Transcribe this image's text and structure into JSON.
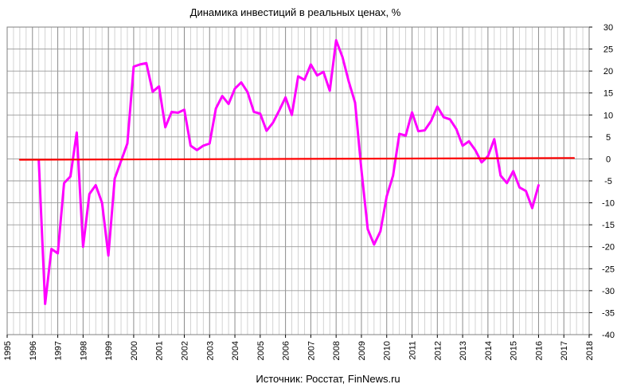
{
  "chart_data": {
    "type": "line",
    "title": "Динамика инвестиций в реальных ценах, %",
    "source": "Источник: Росстат, FinNews.ru",
    "xlabel": "",
    "ylabel": "",
    "xlim": [
      1995,
      2018
    ],
    "ylim": [
      -40,
      30
    ],
    "x_ticks": [
      "1995",
      "1996",
      "1997",
      "1998",
      "1999",
      "2000",
      "2001",
      "2002",
      "2003",
      "2004",
      "2005",
      "2006",
      "2007",
      "2008",
      "2009",
      "2010",
      "2011",
      "2012",
      "2013",
      "2014",
      "2015",
      "2016",
      "2017",
      "2018"
    ],
    "y_ticks": [
      "30",
      "25",
      "20",
      "15",
      "10",
      "5",
      "0",
      "-5",
      "-10",
      "-15",
      "-20",
      "-25",
      "-30",
      "-35",
      "-40"
    ],
    "grid": true,
    "colors": {
      "series": "#ff00ff",
      "baseline": "#ff0000",
      "grid": "#a0a0a0"
    },
    "series": [
      {
        "color": "#ff00ff",
        "x": [
          1996.25,
          1996.5,
          1996.75,
          1997.0,
          1997.25,
          1997.5,
          1997.75,
          1998.0,
          1998.25,
          1998.5,
          1998.75,
          1999.0,
          1999.25,
          1999.5,
          1999.75,
          2000.0,
          2000.25,
          2000.5,
          2000.75,
          2001.0,
          2001.25,
          2001.5,
          2001.75,
          2002.0,
          2002.25,
          2002.5,
          2002.75,
          2003.0,
          2003.25,
          2003.5,
          2003.75,
          2004.0,
          2004.25,
          2004.5,
          2004.75,
          2005.0,
          2005.25,
          2005.5,
          2005.75,
          2006.0,
          2006.25,
          2006.5,
          2006.75,
          2007.0,
          2007.25,
          2007.5,
          2007.75,
          2008.0,
          2008.25,
          2008.5,
          2008.75,
          2009.0,
          2009.25,
          2009.5,
          2009.75,
          2010.0,
          2010.25,
          2010.5,
          2010.75,
          2011.0,
          2011.25,
          2011.5,
          2011.75,
          2012.0,
          2012.25,
          2012.5,
          2012.75,
          2013.0,
          2013.25,
          2013.5,
          2013.75,
          2014.0,
          2014.25,
          2014.5,
          2014.75,
          2015.0,
          2015.25,
          2015.5,
          2015.75,
          2016.0
        ],
        "y": [
          -0.5,
          -33,
          -20.5,
          -21.5,
          -5.5,
          -4,
          6,
          -20,
          -8,
          -6,
          -10,
          -22,
          -4.5,
          -0.5,
          3.5,
          21,
          21.5,
          21.8,
          15.3,
          16.5,
          7.2,
          10.7,
          10.5,
          11.2,
          3,
          2,
          3,
          3.5,
          11.5,
          14.3,
          12.5,
          16,
          17.4,
          15.2,
          10.7,
          10.3,
          6.4,
          8.2,
          11,
          14,
          10,
          18.8,
          18,
          21.5,
          19,
          19.8,
          15.5,
          27,
          23.2,
          17.6,
          12.8,
          -2.5,
          -16,
          -19.5,
          -16.5,
          -8.5,
          -3.8,
          5.7,
          5.3,
          10.6,
          6.3,
          6.5,
          8.6,
          11.9,
          9.5,
          9,
          6.8,
          3,
          4,
          2,
          -0.8,
          0.6,
          4.5,
          -3.8,
          -5.5,
          -2.8,
          -6.5,
          -7.3,
          -11.2,
          -6
        ]
      },
      {
        "color": "#ff0000",
        "x": [
          1995.5,
          2017.4
        ],
        "y": [
          -0.2,
          0.2
        ]
      }
    ]
  }
}
